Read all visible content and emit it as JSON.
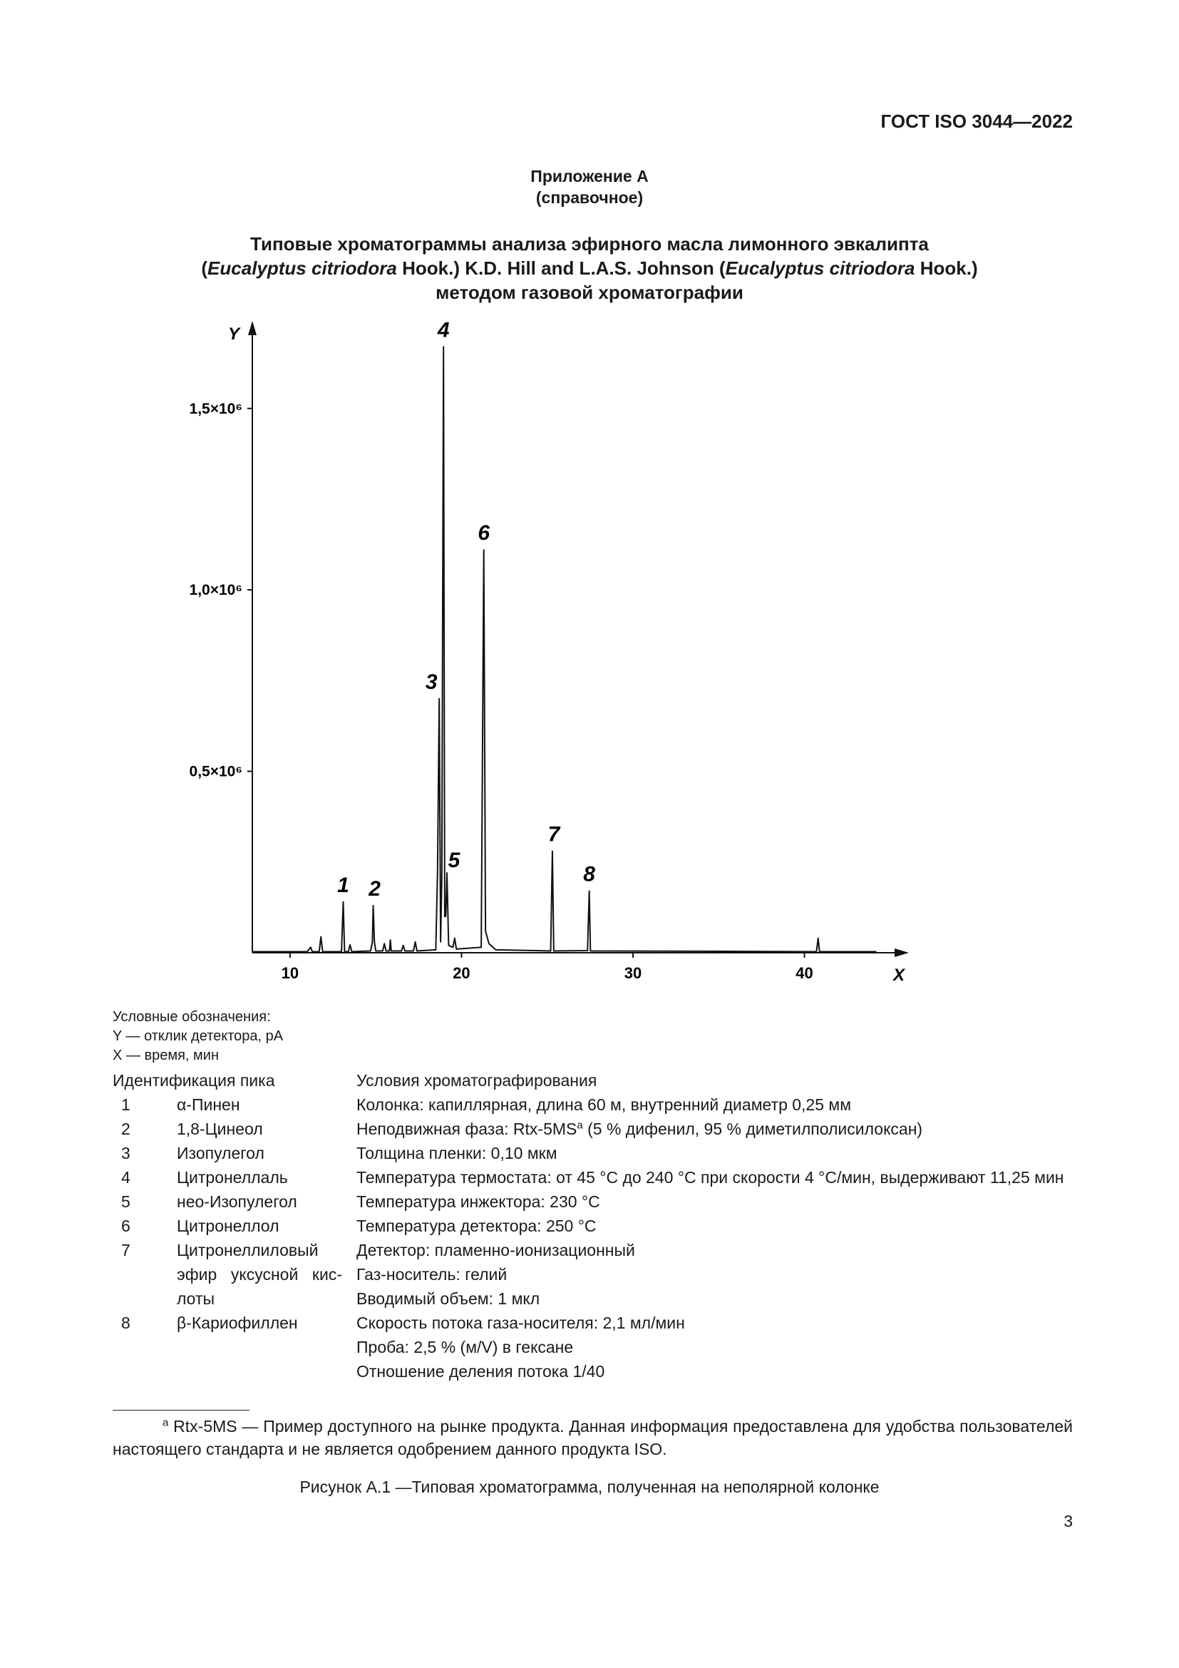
{
  "header": {
    "standard": "ГОСТ ISO 3044—2022"
  },
  "annex": {
    "title": "Приложение А",
    "note": "(справочное)"
  },
  "title": {
    "line1": "Типовые хроматограммы анализа эфирного масла лимонного эвкалипта",
    "line2": [
      "(",
      "Eucalyptus citriodora",
      " Hook.) K.D. Hill and L.A.S. Johnson (",
      "Eucalyptus citriodora",
      " Hook.)"
    ],
    "line3": "методом газовой хроматографии"
  },
  "chart_data": {
    "type": "line",
    "color": "#111111",
    "xlabel": "X",
    "ylabel": "Y",
    "xlim": [
      7.8,
      45.8
    ],
    "ylim": [
      0,
      1700000
    ],
    "xticks": [
      10,
      20,
      30,
      40
    ],
    "yticks": [
      {
        "value": 500000,
        "label": "0,5×10⁶"
      },
      {
        "value": 1000000,
        "label": "1,0×10⁶"
      },
      {
        "value": 1500000,
        "label": "1,5×10⁶"
      }
    ],
    "x": [
      7.8,
      11,
      11.2,
      11.3,
      11.7,
      11.8,
      11.9,
      13.0,
      13.1,
      13.18,
      13.4,
      13.5,
      13.6,
      14.7,
      14.8,
      14.85,
      14.92,
      15.0,
      15.4,
      15.5,
      15.6,
      15.8,
      15.85,
      15.9,
      16.5,
      16.6,
      16.7,
      17.2,
      17.3,
      17.4,
      18.5,
      18.6,
      18.7,
      18.78,
      18.85,
      18.95,
      19.02,
      19.08,
      19.15,
      19.25,
      19.5,
      19.6,
      19.7,
      21.15,
      21.3,
      21.4,
      21.6,
      22,
      25.2,
      25.3,
      25.38,
      27.35,
      27.45,
      27.52,
      40.7,
      40.8,
      40.88,
      44.2
    ],
    "values": [
      3000,
      3000,
      15000,
      3000,
      3000,
      44000,
      3000,
      3000,
      140000,
      3000,
      3000,
      22000,
      3000,
      5000,
      30000,
      130000,
      30000,
      5000,
      5000,
      25000,
      5000,
      5000,
      35000,
      5000,
      5000,
      20000,
      5000,
      5000,
      30000,
      5000,
      8000,
      220000,
      700000,
      30000,
      200000,
      1670000,
      100000,
      100000,
      220000,
      20000,
      15000,
      40000,
      10000,
      15000,
      1110000,
      60000,
      25000,
      8000,
      5000,
      280000,
      5000,
      6000,
      170000,
      5000,
      3000,
      40000,
      3000,
      3000
    ],
    "annotations": [
      {
        "text": "1",
        "x": 13.1,
        "y": 140000
      },
      {
        "text": "2",
        "x": 14.85,
        "y": 130000
      },
      {
        "text": "3",
        "x": 18.7,
        "y": 700000
      },
      {
        "text": "4",
        "x": 18.95,
        "y": 1670000
      },
      {
        "text": "5",
        "x": 19.15,
        "y": 220000
      },
      {
        "text": "6",
        "x": 21.3,
        "y": 1110000
      },
      {
        "text": "7",
        "x": 25.3,
        "y": 280000
      },
      {
        "text": "8",
        "x": 27.45,
        "y": 170000
      }
    ]
  },
  "legend": {
    "title": "Условные обозначения:",
    "y": "Y — отклик детектора, pA",
    "x": "X — время, мин"
  },
  "table": {
    "header": [
      "Идентификация пика",
      "Условия хроматографирования"
    ],
    "rows": [
      {
        "number": "1",
        "name": "α-Пинен",
        "conditions": [
          "Колонка: капиллярная, длина 60 м, внутренний диаметр 0,25 мм"
        ]
      },
      {
        "number": "2",
        "name": "1,8-Цинеол",
        "conditions": [
          {
            "text": "Неподвижная фаза: Rtx-5MS",
            "mark": "a",
            "rest": " (5 % дифенил, 95 % диметилполисилоксан)"
          }
        ]
      },
      {
        "number": "3",
        "name": "Изопулегол",
        "conditions": [
          "Толщина пленки: 0,10 мкм"
        ]
      },
      {
        "number": "4",
        "name": "Цитронеллаль",
        "conditions": [
          "Температура термостата: от 45 °С до 240 °С при скорости 4 °С/мин, выдерживают 11,25 мин"
        ]
      },
      {
        "number": "5",
        "name": "нео-Изопулегол",
        "conditions": [
          "Температура инжектора: 230 °С"
        ]
      },
      {
        "number": "6",
        "name": "Цитронеллол",
        "conditions": [
          "Температура детектора: 250 °С"
        ]
      },
      {
        "number": "7",
        "name": "Цитронеллиловый эфир уксусной кис­лоты",
        "conditions": [
          "Детектор: пламенно-ионизационный",
          "Газ-носитель: гелий",
          "Вводимый объем: 1 мкл"
        ]
      },
      {
        "number": "8",
        "name": "β-Кариофиллен",
        "conditions": [
          "Скорость потока газа-носителя: 2,1 мл/мин",
          "Проба: 2,5 % (м/V) в гексане",
          "Отношение деления потока 1/40"
        ]
      }
    ]
  },
  "footnote": {
    "mark": "a",
    "text": "Rtx-5MS — Пример доступного на рынке продукта. Данная информация предоставлена для удобства пользователей настоящего стандарта и не является одобрением данного продукта ISO."
  },
  "caption": "Рисунок А.1 —Типовая хроматограмма, полученная на неполярной колонке",
  "page_number": "3"
}
